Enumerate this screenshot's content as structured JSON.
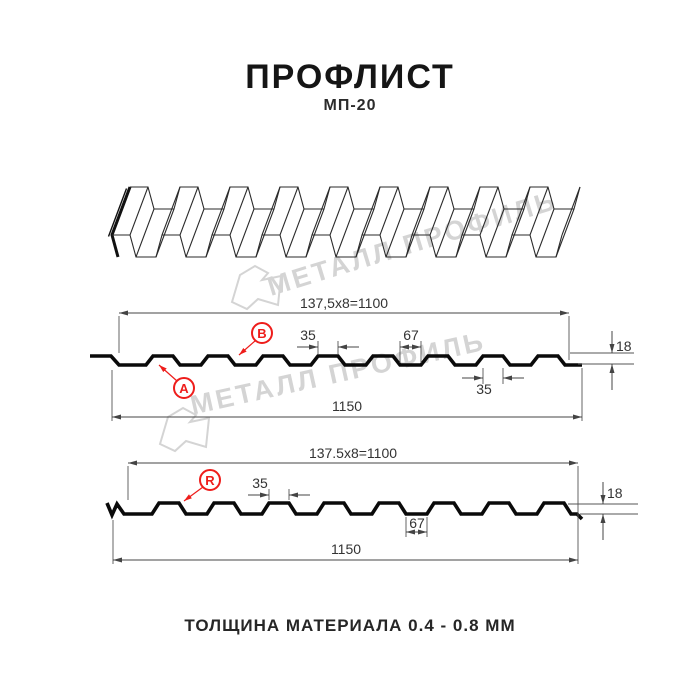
{
  "header": {
    "title": "ПРОФЛИСТ",
    "subtitle": "МП-20"
  },
  "footer": {
    "thickness_note": "ТОЛЩИНА МАТЕРИАЛА 0.4 - 0.8 ММ"
  },
  "watermark": {
    "brand_text": "МЕТАЛЛ ПРОФИЛЬ",
    "color": "#d4d4d4"
  },
  "colors": {
    "accent_red": "#ee1d1b",
    "drawing_line": "#0a0a0a",
    "dimension_line": "#444444"
  },
  "diagram_top_profile": {
    "working_width_dim": "137,5x8=1100",
    "rib_top_width_dim": "35",
    "valley_width_dim": "67",
    "height_dim": "18",
    "rib_bottom_width_dim": "35",
    "full_width_dim": "1150",
    "side_label_a": "A",
    "side_label_b": "B"
  },
  "diagram_bottom_profile": {
    "working_width_dim": "137.5x8=1100",
    "rib_top_width_dim": "35",
    "valley_width_dim": "67",
    "height_dim": "18",
    "full_width_dim": "1150",
    "side_label_r": "R"
  }
}
